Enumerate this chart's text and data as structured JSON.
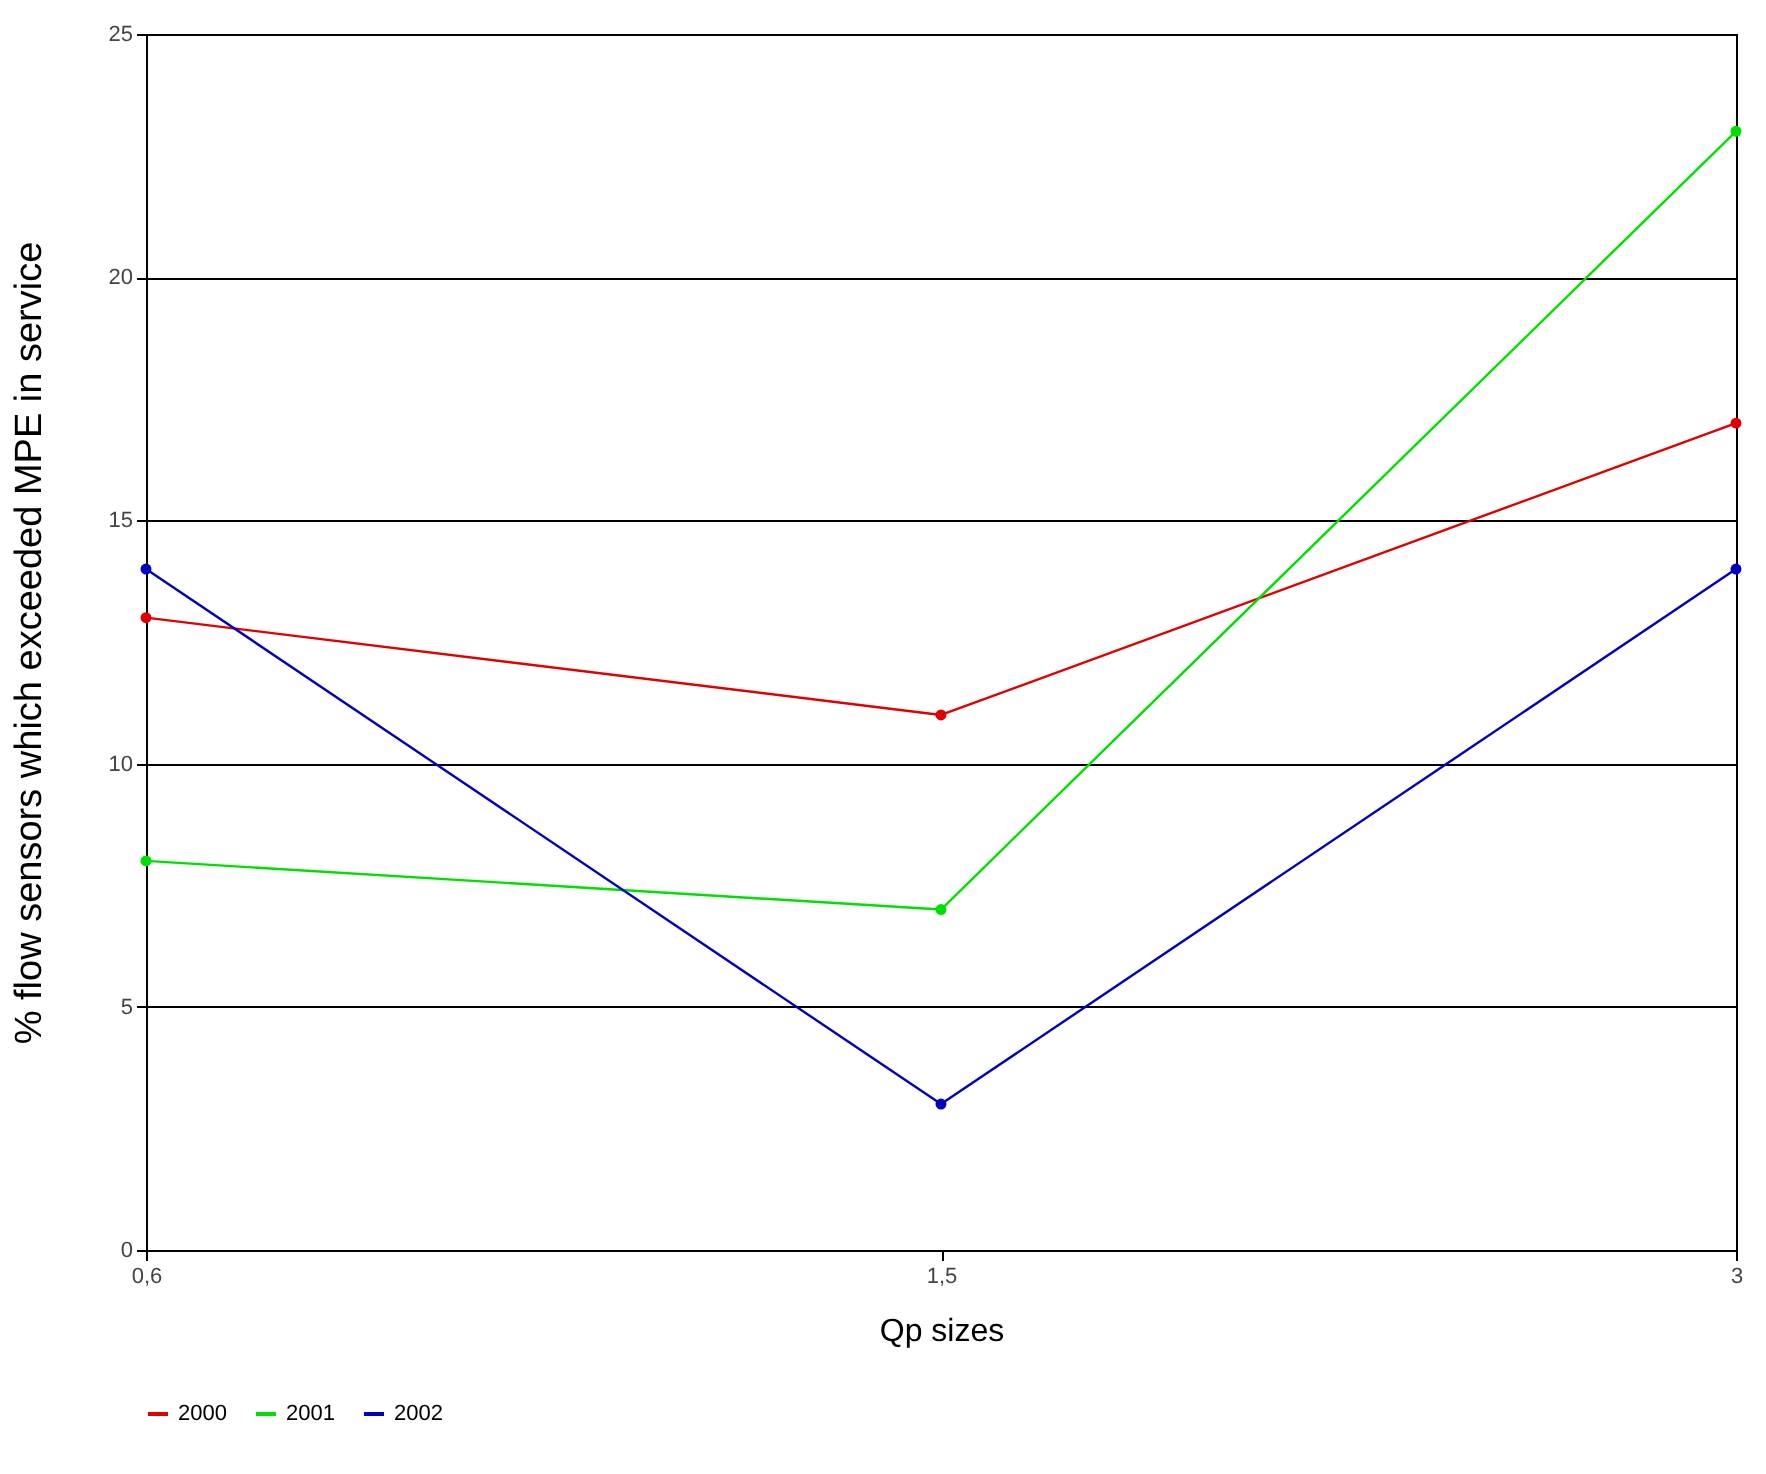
{
  "chart_data": {
    "type": "line",
    "xlabel": "Qp sizes",
    "ylabel": "% flow sensors which exceeded  MPE in service",
    "categories": [
      "0,6",
      "1,5",
      "3"
    ],
    "series": [
      {
        "name": "2000",
        "color": "#e00000",
        "values": [
          13,
          11,
          17
        ]
      },
      {
        "name": "2001",
        "color": "#00e000",
        "values": [
          8,
          7,
          23
        ]
      },
      {
        "name": "2002",
        "color": "#0000c0",
        "values": [
          14,
          3,
          14
        ]
      }
    ],
    "ylim": [
      0,
      25
    ],
    "yticks": [
      0,
      5,
      10,
      15,
      20,
      25
    ],
    "grid": "y",
    "legend": "bottom",
    "marker": "circle",
    "line_style": "solid"
  }
}
